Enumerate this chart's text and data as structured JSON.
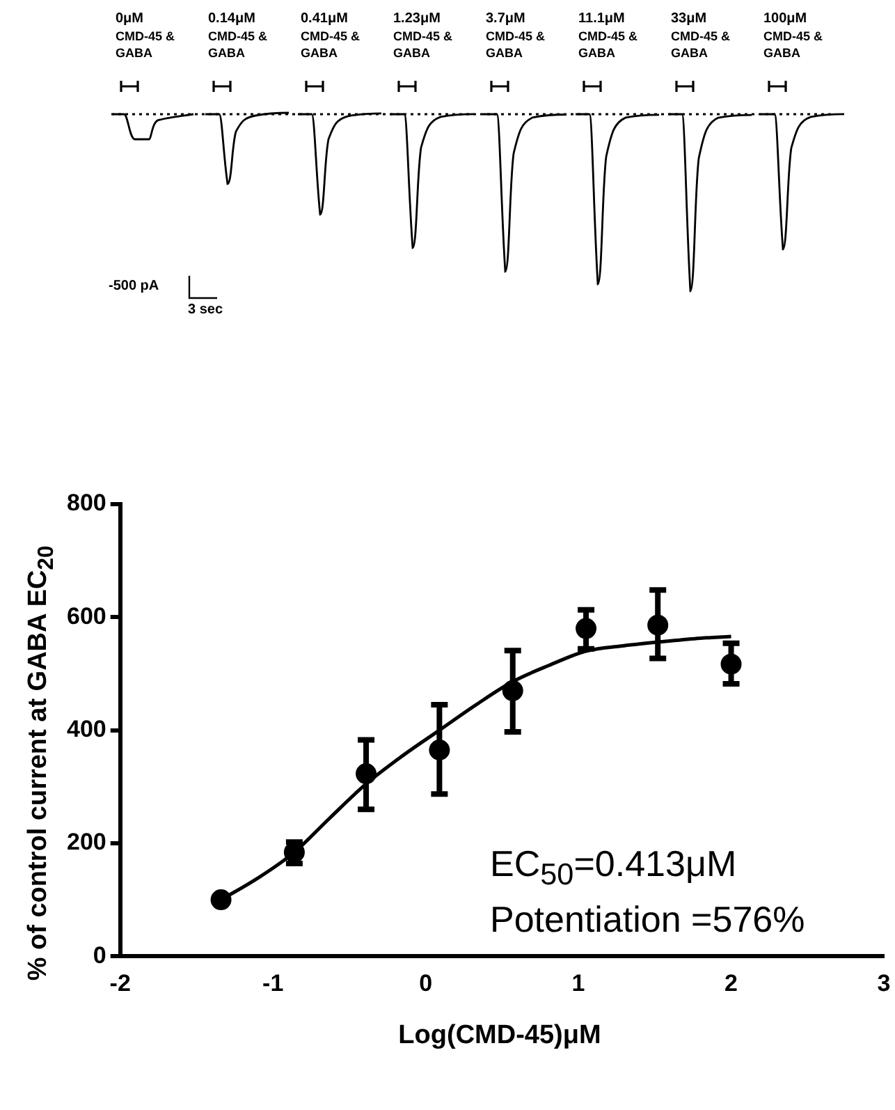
{
  "chart_data": [
    {
      "type": "other",
      "annotations": [
        "0μM\nCMD-45 &\nGABA",
        "0.14μM\nCMD-45 &\nGABA",
        "0.41μM\nCMD-45 &\nGABA",
        "1.23μM\nCMD-45 &\nGABA",
        "3.7μM\nCMD-45 &\nGABA",
        "11.1μM\nCMD-45 &\nGABA",
        "33μM\nCMD-45 &\nGABA",
        "100μM\nCMD-45 &\nGABA",
        "-500 pA",
        "3 sec"
      ]
    },
    {
      "type": "scatter",
      "xlabel": "Log(CMD-45)μM",
      "ylabel": "% of control current at GABA EC$_{20}$",
      "xlim": [
        -2,
        3
      ],
      "xticks": [
        -2,
        -1,
        0,
        1,
        2,
        3
      ],
      "ylim": [
        0,
        800
      ],
      "yticks": [
        0,
        200,
        400,
        600,
        800
      ],
      "grid": false,
      "legend": false,
      "annotations": [
        "EC$_{50}$=0.413μM",
        "Potentiation =576%"
      ],
      "series": [
        {
          "type": "scatter",
          "marker": "circle",
          "color": "#000000",
          "x": [
            -1.34,
            -0.86,
            -0.39,
            0.09,
            0.57,
            1.05,
            1.52,
            2.0
          ],
          "values": [
            100,
            184,
            323,
            365,
            470,
            580,
            586,
            517
          ],
          "errors": [
            null,
            [
              164,
              202
            ],
            [
              260,
              383
            ],
            [
              287,
              445
            ],
            [
              397,
              541
            ],
            [
              544,
              613
            ],
            [
              527,
              648
            ],
            [
              482,
              554
            ]
          ]
        },
        {
          "type": "line",
          "marker": "none",
          "color": "#000000",
          "x": [
            -1.34,
            -1.1,
            -0.86,
            -0.63,
            -0.39,
            -0.15,
            0.09,
            0.33,
            0.57,
            0.81,
            1.05,
            1.28,
            1.52,
            1.76,
            2.0
          ],
          "values": [
            100,
            138,
            184,
            244,
            305,
            355,
            400,
            445,
            486,
            515,
            540,
            549,
            556,
            562,
            566
          ]
        }
      ]
    }
  ]
}
